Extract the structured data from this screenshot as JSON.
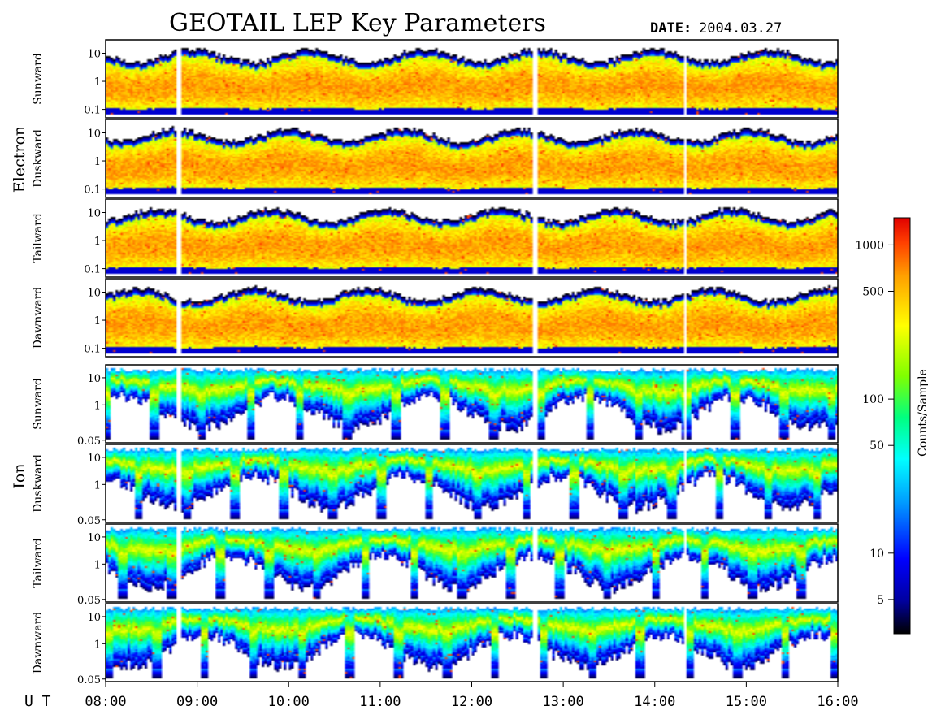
{
  "chart_data": {
    "type": "heatmap",
    "title": "GEOTAIL LEP Key Parameters",
    "date_label": "DATE:",
    "date_value": "2004.03.27",
    "x_axis": {
      "label": "U T",
      "range": [
        "08:00",
        "16:00"
      ],
      "ticks": [
        "08:00",
        "09:00",
        "10:00",
        "11:00",
        "12:00",
        "13:00",
        "14:00",
        "15:00",
        "16:00"
      ]
    },
    "groups": [
      {
        "name": "Electron",
        "panels": [
          "Sunward",
          "Duskward",
          "Tailward",
          "Dawnward"
        ],
        "y_scale": "log",
        "y_ticks": [
          "10",
          "1",
          "0.1"
        ],
        "y_tick_values": [
          10,
          1,
          0.1
        ]
      },
      {
        "name": "Ion",
        "panels": [
          "Sunward",
          "Duskward",
          "Tailward",
          "Dawnward"
        ],
        "y_scale": "log",
        "y_ticks": [
          "10",
          "1",
          "0.05"
        ],
        "y_tick_values": [
          10,
          1,
          0.05
        ]
      }
    ],
    "colorbar": {
      "label": "Counts/Sample",
      "scale": "log",
      "ticks": [
        "1000",
        "500",
        "100",
        "50",
        "10",
        "5"
      ],
      "tick_values": [
        1000,
        500,
        100,
        50,
        10,
        5
      ],
      "range": [
        3,
        1500
      ],
      "colormap": [
        "#000000",
        "#0000a0",
        "#0000ff",
        "#00a0ff",
        "#00ffff",
        "#00ff80",
        "#80ff00",
        "#ffff00",
        "#ffa000",
        "#ff4000",
        "#e00000"
      ]
    }
  }
}
